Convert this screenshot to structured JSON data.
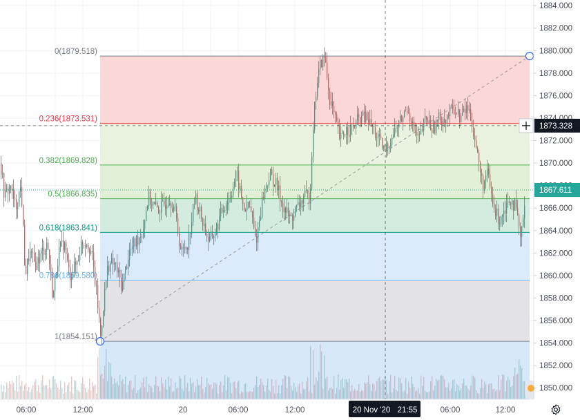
{
  "chart_data": {
    "type": "candlestick",
    "instrument_unit": "price",
    "x_tick_labels": [
      "06:00",
      "12:00",
      "20",
      "06:00",
      "12:00",
      "06:00",
      "12:00"
    ],
    "y_tick_labels": [
      "1850.000",
      "1852.000",
      "1854.000",
      "1856.000",
      "1858.000",
      "1860.000",
      "1862.000",
      "1864.000",
      "1866.000",
      "1868.000",
      "1870.000",
      "1872.000",
      "1874.000",
      "1876.000",
      "1878.000",
      "1880.000",
      "1882.000",
      "1884.000"
    ],
    "ylim": [
      1849.0,
      1884.5
    ],
    "grid": true,
    "crosshair": {
      "date_label": "20 Nov '20",
      "time_label": "21:55",
      "price_label": "1873.328",
      "price": 1873.328
    },
    "last_price": {
      "label": "1867.611",
      "value": 1867.611
    },
    "fibonacci": {
      "from": 1854.151,
      "to": 1879.518,
      "levels": [
        {
          "ratio": 0,
          "label": "0(1879.518)",
          "price": 1879.518,
          "line_color": "#787b86",
          "text_color": "#787b86",
          "fill": null
        },
        {
          "ratio": 0.236,
          "label": "0.236(1873.531)",
          "price": 1873.531,
          "line_color": "#f23645",
          "text_color": "#f23645",
          "fill": "#fbd7d7"
        },
        {
          "ratio": 0.382,
          "label": "0.382(1869.828)",
          "price": 1869.828,
          "line_color": "#4caf50",
          "text_color": "#4caf50",
          "fill": "#e9f3df"
        },
        {
          "ratio": 0.5,
          "label": "0.5(1866.835)",
          "price": 1866.835,
          "line_color": "#4caf50",
          "text_color": "#4caf50",
          "fill": "#e2f0d8"
        },
        {
          "ratio": 0.618,
          "label": "0.618(1863.841)",
          "price": 1863.841,
          "line_color": "#089981",
          "text_color": "#089981",
          "fill": "#d4ebdf"
        },
        {
          "ratio": 0.786,
          "label": "0.786(1859.580)",
          "price": 1859.58,
          "line_color": "#64b5f6",
          "text_color": "#64b5f6",
          "fill": "#dcebfb"
        },
        {
          "ratio": 1,
          "label": "1(1854.151)",
          "price": 1854.151,
          "line_color": "#787b86",
          "text_color": "#787b86",
          "fill": "#e3e3e6"
        }
      ],
      "below_fill": "#d7e8fb"
    },
    "path_knots": [
      [
        0,
        1870
      ],
      [
        6,
        1867
      ],
      [
        14,
        1868
      ],
      [
        22,
        1866
      ],
      [
        30,
        1868
      ],
      [
        36,
        1860
      ],
      [
        42,
        1862
      ],
      [
        50,
        1861
      ],
      [
        60,
        1862
      ],
      [
        68,
        1863
      ],
      [
        76,
        1858
      ],
      [
        84,
        1862
      ],
      [
        92,
        1863
      ],
      [
        100,
        1860
      ],
      [
        110,
        1861
      ],
      [
        118,
        1863
      ],
      [
        126,
        1863
      ],
      [
        132,
        1862
      ],
      [
        140,
        1858
      ],
      [
        145,
        1854.6
      ],
      [
        150,
        1858
      ],
      [
        156,
        1861
      ],
      [
        166,
        1861
      ],
      [
        176,
        1859
      ],
      [
        186,
        1862
      ],
      [
        196,
        1863
      ],
      [
        206,
        1864
      ],
      [
        214,
        1867
      ],
      [
        224,
        1866
      ],
      [
        234,
        1866
      ],
      [
        244,
        1867
      ],
      [
        252,
        1866
      ],
      [
        262,
        1862
      ],
      [
        272,
        1863
      ],
      [
        282,
        1867
      ],
      [
        292,
        1865
      ],
      [
        302,
        1863
      ],
      [
        312,
        1864
      ],
      [
        322,
        1866
      ],
      [
        332,
        1867
      ],
      [
        342,
        1869
      ],
      [
        352,
        1866
      ],
      [
        362,
        1866
      ],
      [
        370,
        1863
      ],
      [
        380,
        1867
      ],
      [
        390,
        1869
      ],
      [
        400,
        1868
      ],
      [
        410,
        1866
      ],
      [
        420,
        1865
      ],
      [
        430,
        1866
      ],
      [
        440,
        1867
      ],
      [
        448,
        1867
      ],
      [
        453,
        1873.5
      ],
      [
        458,
        1877
      ],
      [
        464,
        1879
      ],
      [
        470,
        1879.4
      ],
      [
        476,
        1876
      ],
      [
        484,
        1874
      ],
      [
        492,
        1872
      ],
      [
        500,
        1873
      ],
      [
        510,
        1873
      ],
      [
        520,
        1874
      ],
      [
        530,
        1874
      ],
      [
        540,
        1873
      ],
      [
        548,
        1872
      ],
      [
        556,
        1871
      ],
      [
        564,
        1872
      ],
      [
        572,
        1873
      ],
      [
        582,
        1874
      ],
      [
        590,
        1875
      ],
      [
        598,
        1873
      ],
      [
        606,
        1872
      ],
      [
        616,
        1874
      ],
      [
        626,
        1873
      ],
      [
        636,
        1874
      ],
      [
        646,
        1874
      ],
      [
        656,
        1875
      ],
      [
        666,
        1874
      ],
      [
        676,
        1875
      ],
      [
        682,
        1874
      ],
      [
        690,
        1871
      ],
      [
        698,
        1868
      ],
      [
        706,
        1869
      ],
      [
        714,
        1866
      ],
      [
        722,
        1865
      ],
      [
        730,
        1866
      ],
      [
        738,
        1867
      ],
      [
        746,
        1866
      ],
      [
        754,
        1863
      ],
      [
        760,
        1867.6
      ]
    ],
    "volume": true
  },
  "ui": {
    "settings_icon": "gear-icon",
    "scroll_icon": "scroll-to-realtime-icon"
  }
}
